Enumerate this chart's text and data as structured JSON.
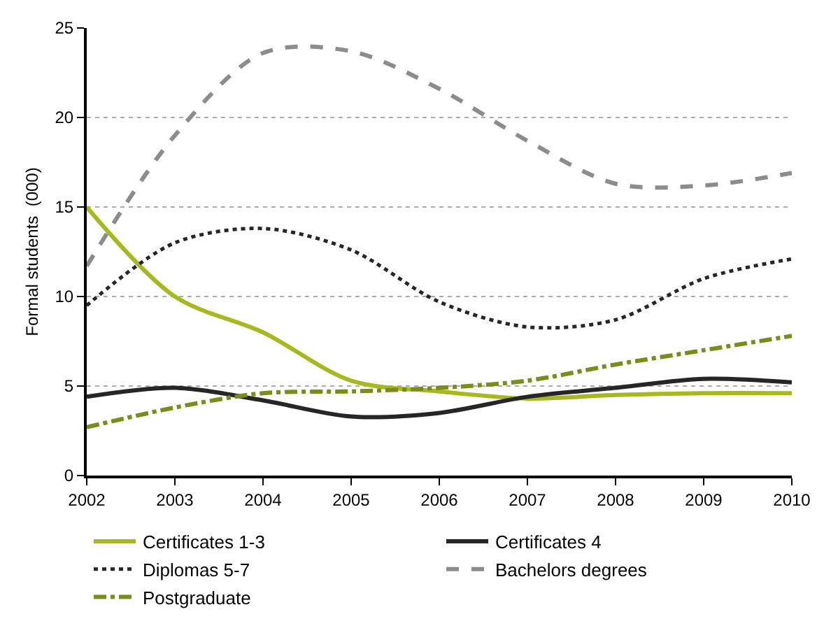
{
  "chart_data": {
    "type": "line",
    "ylabel": "Formal students  (000)",
    "x": [
      2002,
      2003,
      2004,
      2005,
      2006,
      2007,
      2008,
      2009,
      2010
    ],
    "xlim": [
      2002,
      2010
    ],
    "xticks": [
      2002,
      2003,
      2004,
      2005,
      2006,
      2007,
      2008,
      2009,
      2010
    ],
    "ylim": [
      0,
      25
    ],
    "yticks": [
      0,
      5,
      10,
      15,
      20,
      25
    ],
    "grid": "y",
    "legend": "bottom",
    "marker": "none",
    "series": [
      {
        "name": "Certificates 1-3",
        "color": "#a8b820",
        "line_style": "solid",
        "values": [
          15,
          10,
          8,
          5.3,
          4.7,
          4.3,
          4.5,
          4.6,
          4.6
        ]
      },
      {
        "name": "Certificates 4",
        "color": "#262626",
        "line_style": "solid",
        "values": [
          4.4,
          4.9,
          4.2,
          3.3,
          3.5,
          4.4,
          4.9,
          5.4,
          5.2
        ]
      },
      {
        "name": "Diplomas 5-7",
        "color": "#262626",
        "line_style": "dotted",
        "values": [
          9.5,
          13,
          13.8,
          12.6,
          9.7,
          8.3,
          8.7,
          11,
          12.1
        ]
      },
      {
        "name": "Bachelors degrees",
        "color": "#8c8c8c",
        "line_style": "dashed",
        "values": [
          11.7,
          19,
          23.6,
          23.7,
          21.6,
          18.7,
          16.3,
          16.2,
          16.9
        ]
      },
      {
        "name": "Postgraduate",
        "color": "#7a8c1a",
        "line_style": "dashdot",
        "values": [
          2.7,
          3.8,
          4.6,
          4.7,
          4.9,
          5.3,
          6.2,
          7,
          7.8
        ]
      }
    ]
  }
}
